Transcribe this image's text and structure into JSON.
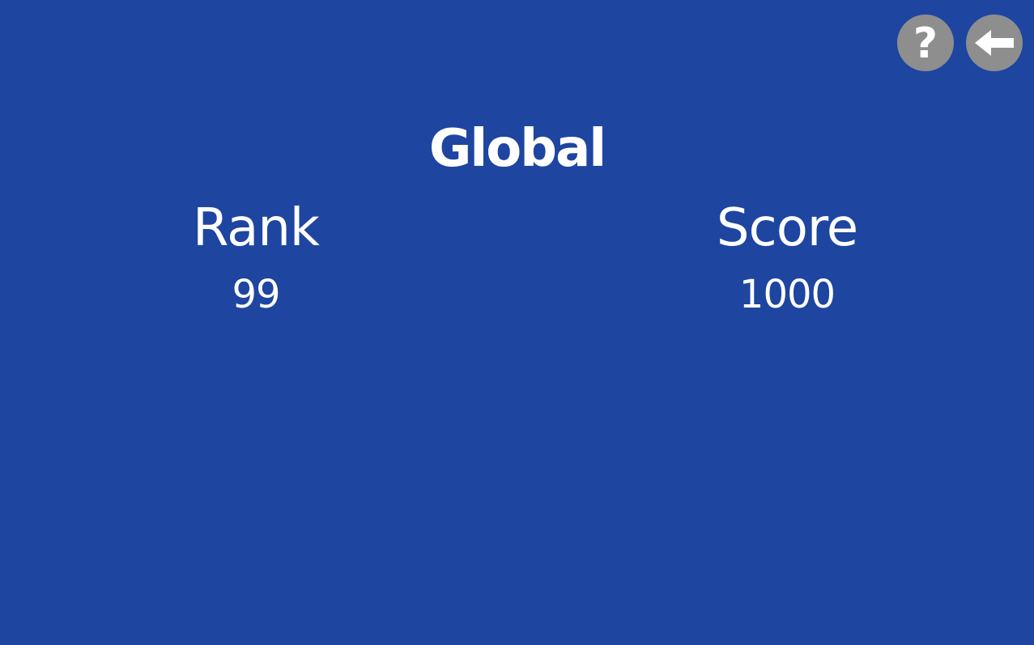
{
  "header": {
    "help_icon": "question-mark-icon",
    "back_icon": "left-arrow-icon",
    "button_color": "#8e8e8e"
  },
  "leaderboard": {
    "title": "Global",
    "rank_label": "Rank",
    "rank_value": "99",
    "score_label": "Score",
    "score_value": "1000"
  },
  "theme": {
    "background": "#1e45a0",
    "text": "#ffffff"
  }
}
